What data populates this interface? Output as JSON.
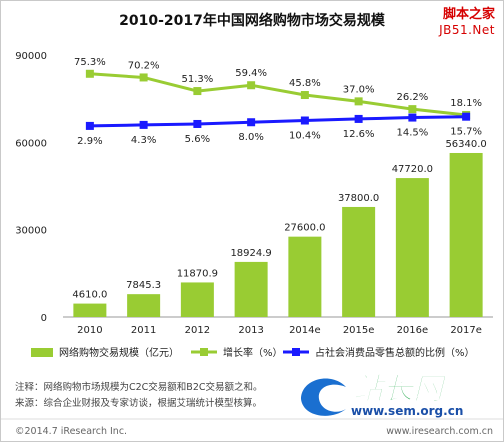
{
  "chart_data": {
    "type": "bar",
    "title": "2010-2017年中国网络购物市场交易规模",
    "categories": [
      "2010",
      "2011",
      "2012",
      "2013",
      "2014e",
      "2015e",
      "2016e",
      "2017e"
    ],
    "yticks": [
      "90000",
      "60000",
      "30000",
      "0"
    ],
    "ylim": [
      0,
      90000
    ],
    "right_ylim": [
      0,
      100
    ],
    "series": [
      {
        "name": "网络购物交易规模（亿元）",
        "kind": "bar",
        "values": [
          4610.0,
          7845.3,
          11870.9,
          18924.9,
          27600.0,
          37800.0,
          47720.0,
          56340.0
        ],
        "labels": [
          "4610.0",
          "7845.3",
          "11870.9",
          "18924.9",
          "27600.0",
          "37800.0",
          "47720.0",
          "56340.0"
        ]
      },
      {
        "name": "增长率（%）",
        "kind": "line",
        "axis": "right",
        "values": [
          75.3,
          70.2,
          51.3,
          59.4,
          45.8,
          37.0,
          26.2,
          18.1
        ],
        "labels": [
          "75.3%",
          "70.2%",
          "51.3%",
          "59.4%",
          "45.8%",
          "37.0%",
          "26.2%",
          "18.1%"
        ]
      },
      {
        "name": "占社会消费品零售总额的比例（%）",
        "kind": "line",
        "axis": "right",
        "values": [
          2.9,
          4.3,
          5.6,
          8.0,
          10.4,
          12.6,
          14.5,
          15.7
        ],
        "labels": [
          "2.9%",
          "4.3%",
          "5.6%",
          "8.0%",
          "10.4%",
          "12.6%",
          "14.5%",
          "15.7%"
        ]
      }
    ],
    "grid": false,
    "legend_position": "bottom"
  },
  "colors": {
    "bar": "#99cc33",
    "growth": "#99cc33",
    "share": "#1a1aff",
    "text": "#222222"
  },
  "footnote": {
    "note": "注释：网络购物市场规模为C2C交易额和B2C交易额之和。",
    "source": "来源：综合企业财报及专家访谈，根据艾瑞统计模型核算。",
    "copyright": "©2014.7 iResearch Inc.",
    "url": "www.iresearch.com.cn"
  },
  "watermarks": {
    "top_line1": "脚本之家",
    "top_line2": "JB51.Net",
    "logo_text": "站长网",
    "logo_url": "www.sem.org.cn"
  }
}
